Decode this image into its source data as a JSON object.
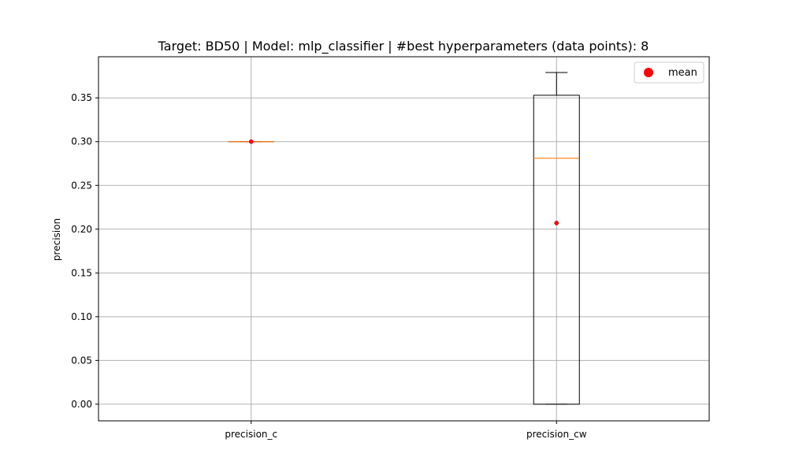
{
  "chart_data": {
    "type": "box",
    "title": "Target: BD50 | Model: mlp_classifier | #best hyperparameters (data points): 8",
    "xlabel": "",
    "ylabel": "precision",
    "categories": [
      "precision_c",
      "precision_cw"
    ],
    "ylim": [
      -0.019,
      0.397
    ],
    "yticks": [
      0.0,
      0.05,
      0.1,
      0.15,
      0.2,
      0.25,
      0.3,
      0.35
    ],
    "ytick_labels": [
      "0.00",
      "0.05",
      "0.10",
      "0.15",
      "0.20",
      "0.25",
      "0.30",
      "0.35"
    ],
    "grid": true,
    "legend": {
      "position": "top-right",
      "entries": [
        {
          "label": "mean",
          "marker": "circle",
          "color": "#ff0000"
        }
      ]
    },
    "boxes": [
      {
        "category": "precision_c",
        "whisker_low": 0.3,
        "q1": 0.3,
        "median": 0.3,
        "q3": 0.3,
        "whisker_high": 0.3,
        "mean": 0.3
      },
      {
        "category": "precision_cw",
        "whisker_low": 0.0,
        "q1": 0.0,
        "median": 0.281,
        "q3": 0.353,
        "whisker_high": 0.379,
        "mean": 0.207
      }
    ],
    "colors": {
      "box": "#000000",
      "median": "#ff7f0e",
      "mean": "#ff0000",
      "grid": "#b0b0b0"
    }
  }
}
